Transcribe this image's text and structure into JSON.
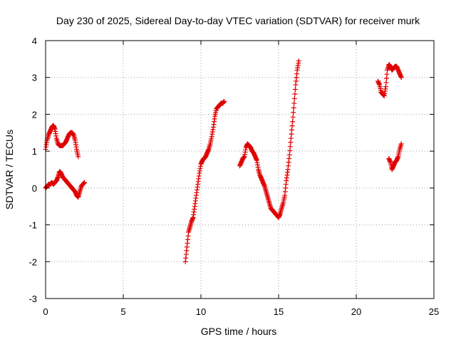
{
  "chart_data": {
    "type": "scatter",
    "title": "Day 230 of 2025, Sidereal Day-to-day VTEC variation (SDTVAR) for receiver murk",
    "xlabel": "GPS time / hours",
    "ylabel": "SDTVAR / TECUs",
    "xlim": [
      0,
      25
    ],
    "ylim": [
      -3,
      4
    ],
    "xticks": [
      0,
      5,
      10,
      15,
      20,
      25
    ],
    "yticks": [
      -3,
      -2,
      -1,
      0,
      1,
      2,
      3,
      4
    ],
    "xtick_labels": [
      "0",
      "5",
      "10",
      "15",
      "20",
      "25"
    ],
    "ytick_labels": [
      "-3",
      "-2",
      "-1",
      "0",
      "1",
      "2",
      "3",
      "4"
    ],
    "grid": true,
    "marker": "+",
    "color": "#e00000",
    "series": [
      {
        "name": "seg1-upper",
        "x": [
          0.0,
          0.1,
          0.2,
          0.3,
          0.4,
          0.5,
          0.6,
          0.7,
          0.8,
          0.9,
          1.0,
          1.1,
          1.2,
          1.3,
          1.4,
          1.5,
          1.6,
          1.7,
          1.8,
          1.9,
          2.0,
          2.1
        ],
        "y": [
          1.05,
          1.3,
          1.45,
          1.55,
          1.65,
          1.7,
          1.6,
          1.35,
          1.2,
          1.15,
          1.15,
          1.15,
          1.2,
          1.25,
          1.35,
          1.45,
          1.5,
          1.5,
          1.45,
          1.3,
          1.05,
          0.85
        ]
      },
      {
        "name": "seg1-lower",
        "x": [
          0.0,
          0.1,
          0.2,
          0.3,
          0.4,
          0.5,
          0.6,
          0.7,
          0.8,
          0.9,
          1.0,
          1.1,
          1.2,
          1.3,
          1.4,
          1.5,
          1.6,
          1.7,
          1.8,
          1.9,
          2.0,
          2.1,
          2.2,
          2.3,
          2.4,
          2.5
        ],
        "y": [
          0.0,
          0.05,
          0.1,
          0.1,
          0.15,
          0.1,
          0.15,
          0.2,
          0.3,
          0.45,
          0.4,
          0.3,
          0.25,
          0.2,
          0.15,
          0.1,
          0.05,
          0.0,
          -0.05,
          -0.1,
          -0.2,
          -0.25,
          -0.1,
          0.05,
          0.1,
          0.15
        ]
      },
      {
        "name": "seg2",
        "x": [
          9.0,
          9.1,
          9.2,
          9.3,
          9.4,
          9.5,
          9.6,
          9.7,
          9.8,
          9.9,
          10.0,
          10.1,
          10.2,
          10.3,
          10.4,
          10.5,
          10.6,
          10.7,
          10.8,
          10.9,
          11.0,
          11.1,
          11.2,
          11.3,
          11.4,
          11.5
        ],
        "y": [
          -2.0,
          -1.6,
          -1.2,
          -1.05,
          -0.9,
          -0.8,
          -0.5,
          -0.2,
          0.1,
          0.4,
          0.65,
          0.75,
          0.8,
          0.85,
          0.95,
          1.05,
          1.2,
          1.4,
          1.65,
          1.95,
          2.15,
          2.2,
          2.25,
          2.3,
          2.3,
          2.35
        ]
      },
      {
        "name": "seg3",
        "x": [
          12.5,
          12.6,
          12.7,
          12.8,
          12.9,
          13.0,
          13.1,
          13.2,
          13.3,
          13.4,
          13.5,
          13.6,
          13.7,
          13.8,
          13.9,
          14.0,
          14.1,
          14.2,
          14.3,
          14.4,
          14.5,
          14.6,
          14.7,
          14.8,
          14.9,
          15.0,
          15.1,
          15.2,
          15.3,
          15.4,
          15.5,
          15.6,
          15.7,
          15.8,
          15.9,
          16.0,
          16.1,
          16.2,
          16.3
        ],
        "y": [
          0.6,
          0.7,
          0.8,
          0.85,
          1.1,
          1.2,
          1.15,
          1.1,
          1.0,
          0.95,
          0.85,
          0.75,
          0.5,
          0.35,
          0.25,
          0.15,
          0.05,
          -0.1,
          -0.25,
          -0.4,
          -0.55,
          -0.6,
          -0.65,
          -0.7,
          -0.75,
          -0.8,
          -0.7,
          -0.55,
          -0.4,
          -0.2,
          0.2,
          0.5,
          0.9,
          1.35,
          1.8,
          2.3,
          2.8,
          3.2,
          3.45
        ]
      },
      {
        "name": "seg4-upper",
        "x": [
          21.4,
          21.5,
          21.6,
          21.7,
          21.8,
          21.9,
          22.0,
          22.1,
          22.2,
          22.3,
          22.4,
          22.5,
          22.6,
          22.7,
          22.8,
          22.9
        ],
        "y": [
          2.9,
          2.8,
          2.6,
          2.55,
          2.5,
          2.75,
          3.2,
          3.35,
          3.3,
          3.2,
          3.25,
          3.3,
          3.3,
          3.2,
          3.1,
          3.0
        ]
      },
      {
        "name": "seg4-lower",
        "x": [
          22.1,
          22.2,
          22.3,
          22.4,
          22.5,
          22.6,
          22.7,
          22.8,
          22.9
        ],
        "y": [
          0.8,
          0.7,
          0.5,
          0.6,
          0.7,
          0.75,
          0.85,
          1.05,
          1.2
        ]
      }
    ]
  }
}
